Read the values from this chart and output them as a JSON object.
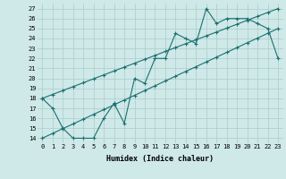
{
  "xlabel": "Humidex (Indice chaleur)",
  "ylabel": "",
  "background_color": "#cfe8e8",
  "grid_color": "#aacccc",
  "line_color": "#1a7070",
  "hours": [
    0,
    1,
    2,
    3,
    4,
    5,
    6,
    7,
    8,
    9,
    10,
    11,
    12,
    13,
    14,
    15,
    16,
    17,
    18,
    19,
    20,
    21,
    22,
    23
  ],
  "main_series": [
    18,
    17,
    15,
    14,
    14,
    14,
    16,
    17.5,
    15.5,
    20,
    19.5,
    22,
    22,
    24.5,
    24,
    23.5,
    27,
    25.5,
    26,
    26,
    26,
    25.5,
    25,
    22
  ],
  "lower_line": [
    14,
    14.48,
    14.96,
    15.43,
    15.91,
    16.39,
    16.87,
    17.35,
    17.83,
    18.3,
    18.78,
    19.26,
    19.74,
    20.22,
    20.7,
    21.17,
    21.65,
    22.13,
    22.61,
    23.09,
    23.57,
    24.04,
    24.52,
    25.0
  ],
  "upper_line": [
    18,
    18.39,
    18.78,
    19.17,
    19.56,
    19.96,
    20.35,
    20.74,
    21.13,
    21.52,
    21.91,
    22.3,
    22.7,
    23.09,
    23.48,
    23.87,
    24.26,
    24.65,
    25.04,
    25.43,
    25.83,
    26.22,
    26.61,
    27.0
  ],
  "xlim": [
    -0.5,
    23.5
  ],
  "ylim": [
    13.5,
    27.5
  ],
  "yticks": [
    14,
    15,
    16,
    17,
    18,
    19,
    20,
    21,
    22,
    23,
    24,
    25,
    26,
    27
  ],
  "xticks": [
    0,
    1,
    2,
    3,
    4,
    5,
    6,
    7,
    8,
    9,
    10,
    11,
    12,
    13,
    14,
    15,
    16,
    17,
    18,
    19,
    20,
    21,
    22,
    23
  ],
  "marker": "+",
  "marker_size": 3,
  "line_width": 0.8,
  "tick_fontsize": 5.0,
  "xlabel_fontsize": 6.0
}
